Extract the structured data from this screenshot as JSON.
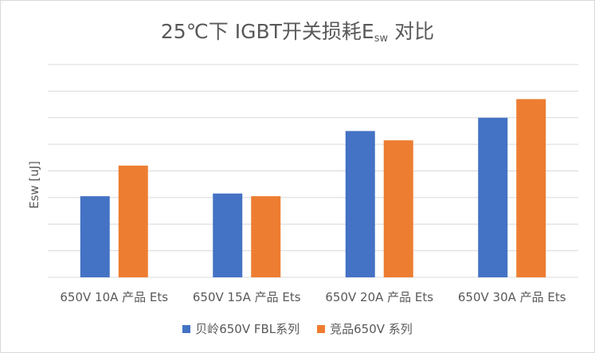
{
  "chart_data": {
    "type": "bar",
    "title": {
      "prefix": "25℃下 IGBT开关损耗E",
      "sub": "sw",
      "suffix": " 对比"
    },
    "ylabel": "Esw [uJ]",
    "categories": [
      "650V 10A 产品 Ets",
      "650V 15A 产品 Ets",
      "650V 20A 产品 Ets",
      "650V 30A 产品 Ets"
    ],
    "series": [
      {
        "name": "贝岭650V FBL系列",
        "color": "#4472c4",
        "values": [
          3.05,
          3.15,
          5.5,
          6.0
        ]
      },
      {
        "name": "竞品650V 系列",
        "color": "#ed7d31",
        "values": [
          4.2,
          3.05,
          5.15,
          6.7
        ]
      }
    ],
    "ylim": [
      0,
      8
    ],
    "grid": true,
    "y_tick_labels_shown": false,
    "legend_position": "bottom"
  }
}
